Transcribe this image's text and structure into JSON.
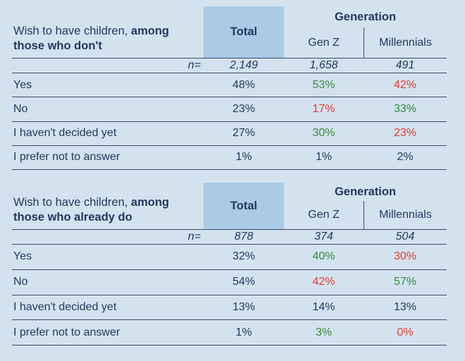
{
  "colors": {
    "background": "#d3e2ef",
    "highlight": "#aacae6",
    "text": "#21395c",
    "line": "#3c4c63",
    "green": "#338a38",
    "red": "#e8382c"
  },
  "chart_data": [
    {
      "type": "table",
      "title": "Wish to have children, among those who don't",
      "title_parts": {
        "regular": "Wish to have children,",
        "bold_line1": "among",
        "bold_line2": "those who don't"
      },
      "total_label": "Total",
      "generation_label": "Generation",
      "group_columns": [
        "Gen Z",
        "Millennials"
      ],
      "n_label": "n=",
      "n_values": [
        "2,149",
        "1,658",
        "491"
      ],
      "rows": [
        {
          "label": "Yes",
          "values": [
            "48%",
            "53%",
            "42%"
          ],
          "emphasis": [
            null,
            "green",
            "red"
          ]
        },
        {
          "label": "No",
          "values": [
            "23%",
            "17%",
            "33%"
          ],
          "emphasis": [
            null,
            "red",
            "green"
          ]
        },
        {
          "label": "I haven't decided yet",
          "values": [
            "27%",
            "30%",
            "23%"
          ],
          "emphasis": [
            null,
            "green",
            "red"
          ]
        },
        {
          "label": "I prefer not to answer",
          "values": [
            "1%",
            "1%",
            "2%"
          ],
          "emphasis": [
            null,
            null,
            null
          ]
        }
      ]
    },
    {
      "type": "table",
      "title": "Wish to have children, among those who already do",
      "title_parts": {
        "regular": "Wish to have children,",
        "bold_line1": "among",
        "bold_line2": "those who already do"
      },
      "total_label": "Total",
      "generation_label": "Generation",
      "group_columns": [
        "Gen Z",
        "Millennials"
      ],
      "n_label": "n=",
      "n_values": [
        "878",
        "374",
        "504"
      ],
      "rows": [
        {
          "label": "Yes",
          "values": [
            "32%",
            "40%",
            "30%"
          ],
          "emphasis": [
            null,
            "green",
            "red"
          ]
        },
        {
          "label": "No",
          "values": [
            "54%",
            "42%",
            "57%"
          ],
          "emphasis": [
            null,
            "red",
            "green"
          ]
        },
        {
          "label": "I haven't decided yet",
          "values": [
            "13%",
            "14%",
            "13%"
          ],
          "emphasis": [
            null,
            null,
            null
          ]
        },
        {
          "label": "I prefer not to answer",
          "values": [
            "1%",
            "3%",
            "0%"
          ],
          "emphasis": [
            null,
            "green",
            "red"
          ]
        }
      ]
    }
  ]
}
